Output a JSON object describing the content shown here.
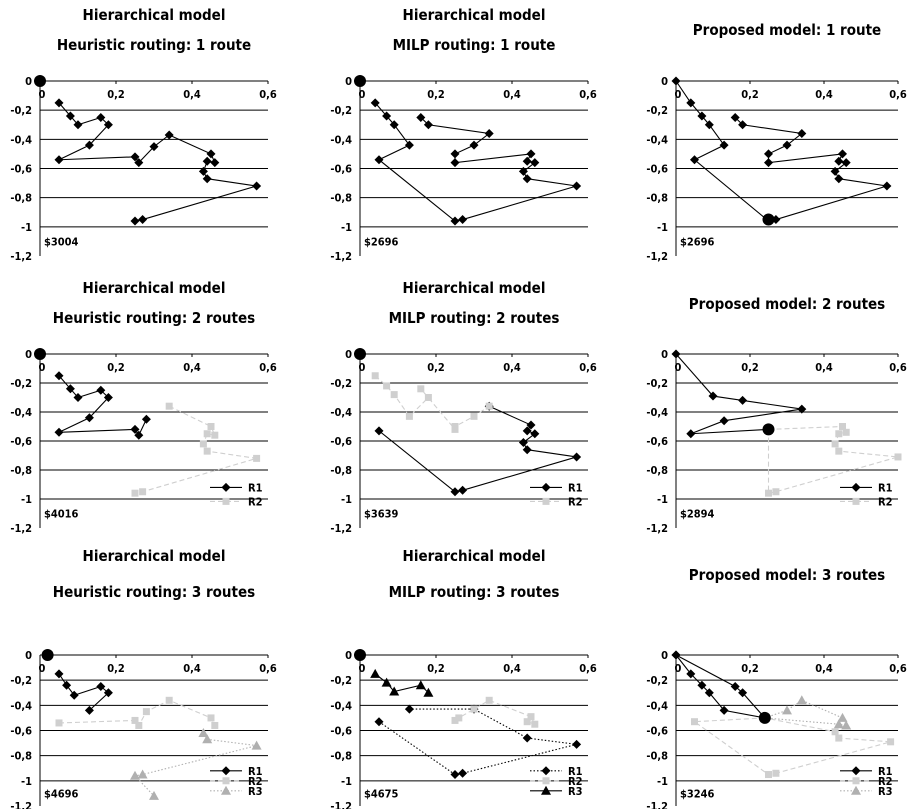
{
  "colors": {
    "R1": "#000000",
    "R2": "#cfcfcf",
    "R3": "#b0b0b0"
  },
  "axis": {
    "xticks": [
      "0",
      "0,2",
      "0,4",
      "0,6"
    ],
    "yticks": [
      "0",
      "-0,2",
      "-0,4",
      "-0,6",
      "-0,8",
      "-1",
      "-1,2"
    ]
  },
  "chart_data": [
    {
      "id": "p1",
      "type": "scatter",
      "title": [
        "Hierarchical model",
        "Heuristic routing: 1 route"
      ],
      "cost_label": "$3004",
      "xlim": [
        0,
        0.6
      ],
      "ylim": [
        -1.2,
        0
      ],
      "depot": [
        0,
        0
      ],
      "series": [
        {
          "name": "",
          "color": "#000000",
          "style": "solid",
          "marker": "diamond",
          "points": [
            [
              0.05,
              -0.15
            ],
            [
              0.08,
              -0.24
            ],
            [
              0.1,
              -0.3
            ],
            [
              0.16,
              -0.25
            ],
            [
              0.18,
              -0.3
            ],
            [
              0.13,
              -0.44
            ],
            [
              0.05,
              -0.54
            ],
            [
              0.25,
              -0.52
            ],
            [
              0.26,
              -0.56
            ],
            [
              0.3,
              -0.45
            ],
            [
              0.34,
              -0.37
            ],
            [
              0.45,
              -0.5
            ],
            [
              0.46,
              -0.56
            ],
            [
              0.44,
              -0.55
            ],
            [
              0.43,
              -0.62
            ],
            [
              0.44,
              -0.67
            ],
            [
              0.57,
              -0.72
            ],
            [
              0.27,
              -0.95
            ],
            [
              0.25,
              -0.96
            ]
          ]
        }
      ]
    },
    {
      "id": "p2",
      "type": "scatter",
      "title": [
        "Hierarchical model",
        "MILP routing: 1 route"
      ],
      "cost_label": "$2696",
      "xlim": [
        0,
        0.6
      ],
      "ylim": [
        -1.2,
        0
      ],
      "depot": [
        0,
        0
      ],
      "series": [
        {
          "name": "",
          "color": "#000000",
          "style": "solid",
          "marker": "diamond",
          "points": [
            [
              0.04,
              -0.15
            ],
            [
              0.07,
              -0.24
            ],
            [
              0.09,
              -0.3
            ],
            [
              0.13,
              -0.44
            ],
            [
              0.05,
              -0.54
            ],
            [
              0.25,
              -0.96
            ],
            [
              0.27,
              -0.95
            ],
            [
              0.57,
              -0.72
            ],
            [
              0.44,
              -0.67
            ],
            [
              0.43,
              -0.62
            ],
            [
              0.46,
              -0.56
            ],
            [
              0.44,
              -0.55
            ],
            [
              0.45,
              -0.5
            ],
            [
              0.25,
              -0.56
            ],
            [
              0.25,
              -0.5
            ],
            [
              0.3,
              -0.44
            ],
            [
              0.34,
              -0.36
            ],
            [
              0.18,
              -0.3
            ],
            [
              0.16,
              -0.25
            ]
          ]
        }
      ]
    },
    {
      "id": "p3",
      "type": "scatter",
      "title": [
        "Proposed model: 1 route"
      ],
      "cost_label": "$2696",
      "xlim": [
        0,
        0.6
      ],
      "ylim": [
        -1.2,
        0
      ],
      "depot": [
        0.25,
        -0.95
      ],
      "series": [
        {
          "name": "",
          "color": "#000000",
          "style": "solid",
          "marker": "diamond",
          "points": [
            [
              0.0,
              0.0
            ],
            [
              0.04,
              -0.15
            ],
            [
              0.07,
              -0.24
            ],
            [
              0.09,
              -0.3
            ],
            [
              0.13,
              -0.44
            ],
            [
              0.05,
              -0.54
            ],
            [
              0.25,
              -0.96
            ],
            [
              0.27,
              -0.95
            ],
            [
              0.57,
              -0.72
            ],
            [
              0.44,
              -0.67
            ],
            [
              0.43,
              -0.62
            ],
            [
              0.46,
              -0.56
            ],
            [
              0.44,
              -0.55
            ],
            [
              0.45,
              -0.5
            ],
            [
              0.25,
              -0.56
            ],
            [
              0.25,
              -0.5
            ],
            [
              0.3,
              -0.44
            ],
            [
              0.34,
              -0.36
            ],
            [
              0.18,
              -0.3
            ],
            [
              0.16,
              -0.25
            ]
          ]
        }
      ]
    },
    {
      "id": "p4",
      "type": "scatter",
      "title": [
        "Hierarchical model",
        "Heuristic routing: 2 routes"
      ],
      "cost_label": "$4016",
      "xlim": [
        0,
        0.6
      ],
      "ylim": [
        -1.2,
        0
      ],
      "depot": [
        0,
        0
      ],
      "series": [
        {
          "name": "R1",
          "color": "#000000",
          "style": "solid",
          "marker": "diamond",
          "points": [
            [
              0.05,
              -0.15
            ],
            [
              0.08,
              -0.24
            ],
            [
              0.1,
              -0.3
            ],
            [
              0.16,
              -0.25
            ],
            [
              0.18,
              -0.3
            ],
            [
              0.13,
              -0.44
            ],
            [
              0.05,
              -0.54
            ],
            [
              0.25,
              -0.52
            ],
            [
              0.26,
              -0.56
            ],
            [
              0.28,
              -0.45
            ]
          ]
        },
        {
          "name": "R2",
          "color": "#cfcfcf",
          "style": "dashed",
          "marker": "square",
          "points": [
            [
              0.34,
              -0.36
            ],
            [
              0.45,
              -0.5
            ],
            [
              0.46,
              -0.56
            ],
            [
              0.44,
              -0.55
            ],
            [
              0.43,
              -0.62
            ],
            [
              0.44,
              -0.67
            ],
            [
              0.57,
              -0.72
            ],
            [
              0.27,
              -0.95
            ],
            [
              0.25,
              -0.96
            ]
          ]
        }
      ]
    },
    {
      "id": "p5",
      "type": "scatter",
      "title": [
        "Hierarchical model",
        "MILP routing: 2 routes"
      ],
      "cost_label": "$3639",
      "xlim": [
        0,
        0.6
      ],
      "ylim": [
        -1.2,
        0
      ],
      "depot": [
        0,
        0
      ],
      "series": [
        {
          "name": "R1",
          "color": "#000000",
          "style": "solid",
          "marker": "diamond",
          "points": [
            [
              0.05,
              -0.53
            ],
            [
              0.25,
              -0.95
            ],
            [
              0.27,
              -0.94
            ],
            [
              0.57,
              -0.71
            ],
            [
              0.44,
              -0.66
            ],
            [
              0.43,
              -0.61
            ],
            [
              0.46,
              -0.55
            ],
            [
              0.44,
              -0.53
            ],
            [
              0.45,
              -0.49
            ],
            [
              0.34,
              -0.36
            ]
          ]
        },
        {
          "name": "R2",
          "color": "#cfcfcf",
          "style": "dashed",
          "marker": "square",
          "points": [
            [
              0.04,
              -0.15
            ],
            [
              0.07,
              -0.22
            ],
            [
              0.09,
              -0.28
            ],
            [
              0.13,
              -0.43
            ],
            [
              0.18,
              -0.3
            ],
            [
              0.16,
              -0.24
            ],
            [
              0.25,
              -0.52
            ],
            [
              0.25,
              -0.5
            ],
            [
              0.3,
              -0.43
            ],
            [
              0.34,
              -0.36
            ]
          ]
        }
      ]
    },
    {
      "id": "p6",
      "type": "scatter",
      "title": [
        "Proposed model: 2 routes"
      ],
      "cost_label": "$2894",
      "xlim": [
        0,
        0.6
      ],
      "ylim": [
        -1.2,
        0
      ],
      "depot": [
        0.25,
        -0.52
      ],
      "series": [
        {
          "name": "R1",
          "color": "#000000",
          "style": "solid",
          "marker": "diamond",
          "points": [
            [
              0.0,
              0.0
            ],
            [
              0.1,
              -0.29
            ],
            [
              0.18,
              -0.32
            ],
            [
              0.34,
              -0.38
            ],
            [
              0.13,
              -0.46
            ],
            [
              0.04,
              -0.55
            ],
            [
              0.25,
              -0.52
            ]
          ]
        },
        {
          "name": "R2",
          "color": "#cfcfcf",
          "style": "dashed",
          "marker": "square",
          "points": [
            [
              0.25,
              -0.52
            ],
            [
              0.45,
              -0.5
            ],
            [
              0.46,
              -0.54
            ],
            [
              0.44,
              -0.55
            ],
            [
              0.43,
              -0.62
            ],
            [
              0.44,
              -0.67
            ],
            [
              0.6,
              -0.71
            ],
            [
              0.27,
              -0.95
            ],
            [
              0.25,
              -0.96
            ],
            [
              0.25,
              -0.52
            ]
          ]
        }
      ]
    },
    {
      "id": "p7",
      "type": "scatter",
      "title": [
        "Hierarchical model",
        "Heuristic routing: 3 routes"
      ],
      "cost_label": "$4696",
      "xlim": [
        0,
        0.6
      ],
      "ylim": [
        -1.2,
        0
      ],
      "depot": [
        0.02,
        0
      ],
      "series": [
        {
          "name": "R1",
          "color": "#000000",
          "style": "solid",
          "marker": "diamond",
          "points": [
            [
              0.05,
              -0.15
            ],
            [
              0.07,
              -0.24
            ],
            [
              0.09,
              -0.32
            ],
            [
              0.16,
              -0.25
            ],
            [
              0.18,
              -0.3
            ],
            [
              0.13,
              -0.44
            ]
          ]
        },
        {
          "name": "R2",
          "color": "#cfcfcf",
          "style": "dashed",
          "marker": "square",
          "points": [
            [
              0.05,
              -0.54
            ],
            [
              0.25,
              -0.52
            ],
            [
              0.26,
              -0.56
            ],
            [
              0.28,
              -0.45
            ],
            [
              0.34,
              -0.36
            ],
            [
              0.45,
              -0.5
            ],
            [
              0.46,
              -0.56
            ]
          ]
        },
        {
          "name": "R3",
          "color": "#b0b0b0",
          "style": "dotted",
          "marker": "triangle",
          "points": [
            [
              0.43,
              -0.62
            ],
            [
              0.44,
              -0.67
            ],
            [
              0.57,
              -0.72
            ],
            [
              0.27,
              -0.95
            ],
            [
              0.25,
              -0.96
            ],
            [
              0.3,
              -1.12
            ]
          ]
        }
      ]
    },
    {
      "id": "p8",
      "type": "scatter",
      "title": [
        "Hierarchical model",
        "MILP routing: 3 routes"
      ],
      "cost_label": "$4675",
      "xlim": [
        0,
        0.6
      ],
      "ylim": [
        -1.2,
        0
      ],
      "depot": [
        0,
        0
      ],
      "series": [
        {
          "name": "R1",
          "color": "#000000",
          "style": "dotted",
          "marker": "diamond",
          "points": [
            [
              0.05,
              -0.53
            ],
            [
              0.25,
              -0.95
            ],
            [
              0.27,
              -0.94
            ],
            [
              0.57,
              -0.71
            ],
            [
              0.44,
              -0.66
            ],
            [
              0.3,
              -0.43
            ],
            [
              0.13,
              -0.43
            ]
          ]
        },
        {
          "name": "R2",
          "color": "#cfcfcf",
          "style": "dashed",
          "marker": "square",
          "points": [
            [
              0.25,
              -0.52
            ],
            [
              0.26,
              -0.5
            ],
            [
              0.3,
              -0.43
            ],
            [
              0.34,
              -0.36
            ],
            [
              0.45,
              -0.49
            ],
            [
              0.46,
              -0.55
            ],
            [
              0.44,
              -0.53
            ]
          ]
        },
        {
          "name": "R3",
          "color": "#000000",
          "style": "solid",
          "marker": "triangle",
          "points": [
            [
              0.04,
              -0.15
            ],
            [
              0.07,
              -0.22
            ],
            [
              0.09,
              -0.29
            ],
            [
              0.16,
              -0.24
            ],
            [
              0.18,
              -0.3
            ]
          ]
        }
      ]
    },
    {
      "id": "p9",
      "type": "scatter",
      "title": [
        "Proposed model: 3 routes"
      ],
      "cost_label": "$3246",
      "xlim": [
        0,
        0.6
      ],
      "ylim": [
        -1.2,
        0
      ],
      "depot": [
        0.24,
        -0.5
      ],
      "series": [
        {
          "name": "R1",
          "color": "#000000",
          "style": "solid",
          "marker": "diamond",
          "points": [
            [
              0.0,
              0.0
            ],
            [
              0.04,
              -0.15
            ],
            [
              0.07,
              -0.24
            ],
            [
              0.09,
              -0.3
            ],
            [
              0.13,
              -0.44
            ],
            [
              0.24,
              -0.5
            ],
            [
              0.18,
              -0.3
            ],
            [
              0.16,
              -0.25
            ],
            [
              0.0,
              0.0
            ]
          ]
        },
        {
          "name": "R2",
          "color": "#cfcfcf",
          "style": "dashed",
          "marker": "square",
          "points": [
            [
              0.24,
              -0.5
            ],
            [
              0.05,
              -0.53
            ],
            [
              0.25,
              -0.95
            ],
            [
              0.27,
              -0.94
            ],
            [
              0.58,
              -0.69
            ],
            [
              0.44,
              -0.66
            ],
            [
              0.43,
              -0.61
            ],
            [
              0.24,
              -0.5
            ]
          ]
        },
        {
          "name": "R3",
          "color": "#b0b0b0",
          "style": "dotted",
          "marker": "triangle",
          "points": [
            [
              0.24,
              -0.5
            ],
            [
              0.3,
              -0.44
            ],
            [
              0.34,
              -0.36
            ],
            [
              0.45,
              -0.5
            ],
            [
              0.46,
              -0.56
            ],
            [
              0.44,
              -0.55
            ],
            [
              0.24,
              -0.5
            ]
          ]
        }
      ]
    }
  ]
}
